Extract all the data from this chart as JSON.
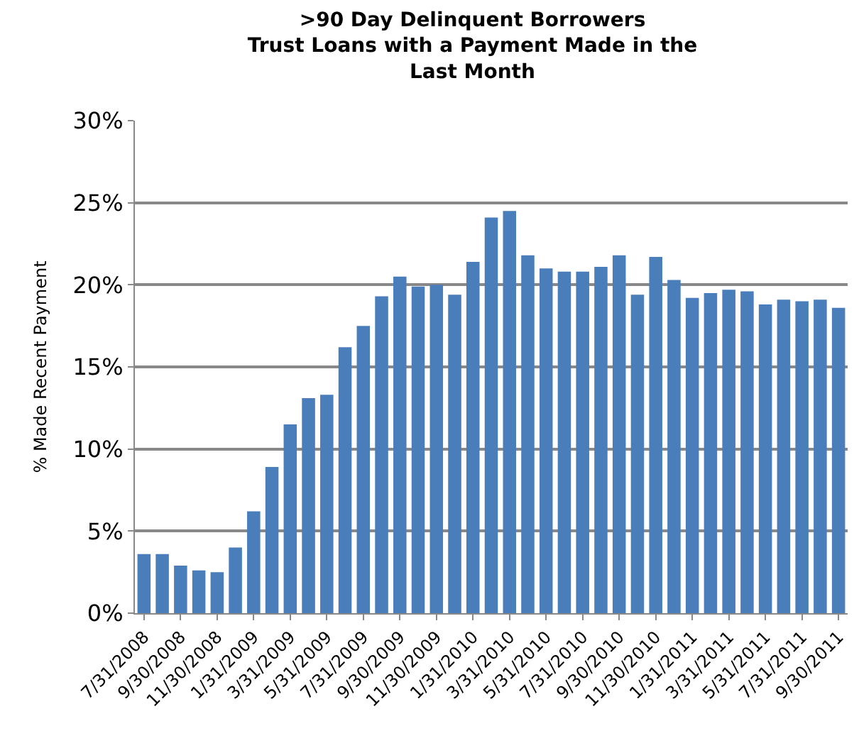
{
  "chart_data": {
    "type": "bar",
    "title": ">90 Day Delinquent Borrowers\nTrust Loans with a Payment Made in the\nLast Month",
    "ylabel": "% Made Recent Payment",
    "categories": [
      "7/31/2008",
      null,
      "9/30/2008",
      null,
      "11/30/2008",
      null,
      "1/31/2009",
      null,
      "3/31/2009",
      null,
      "5/31/2009",
      null,
      "7/31/2009",
      null,
      "9/30/2009",
      null,
      "11/30/2009",
      null,
      "1/31/2010",
      null,
      "3/31/2010",
      null,
      "5/31/2010",
      null,
      "7/31/2010",
      null,
      "9/30/2010",
      null,
      "11/30/2010",
      null,
      "1/31/2011",
      null,
      "3/31/2011",
      null,
      "5/31/2011",
      null,
      "7/31/2011",
      null,
      "9/30/2011"
    ],
    "values": [
      3.6,
      3.6,
      2.9,
      2.6,
      2.5,
      4.0,
      6.2,
      8.9,
      11.5,
      13.1,
      13.3,
      16.2,
      17.5,
      19.3,
      20.5,
      19.9,
      20.0,
      19.4,
      21.4,
      24.1,
      24.5,
      21.8,
      21.0,
      20.8,
      20.8,
      21.1,
      21.8,
      19.4,
      21.7,
      20.3,
      19.2,
      19.5,
      19.7,
      19.6,
      18.8,
      19.1,
      19.0,
      19.1,
      18.6
    ],
    "color": "#4a7ebb",
    "ylim": [
      0,
      30
    ],
    "yticks": [
      {
        "value": 0,
        "label": "0%"
      },
      {
        "value": 5,
        "label": "5%"
      },
      {
        "value": 10,
        "label": "10%"
      },
      {
        "value": 15,
        "label": "15%"
      },
      {
        "value": 20,
        "label": "20%"
      },
      {
        "value": 25,
        "label": "25%"
      },
      {
        "value": 30,
        "label": "30%"
      }
    ],
    "grid": "y"
  }
}
